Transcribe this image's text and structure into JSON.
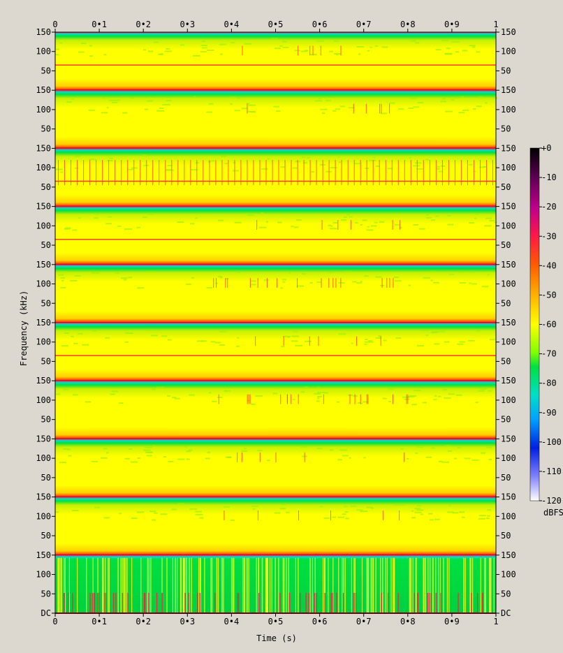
{
  "chart_data": {
    "type": "heatmap",
    "xlabel": "Time (s)",
    "ylabel": "Frequency (kHz)",
    "xlim": [
      0,
      1
    ],
    "x_ticks": [
      "0",
      "0•1",
      "0•2",
      "0•3",
      "0•4",
      "0•5",
      "0•6",
      "0•7",
      "0•8",
      "0•9",
      "1"
    ],
    "y_ticks_per_channel": [
      "150",
      "100",
      "50"
    ],
    "bottom_y_label": "DC",
    "channels": 10,
    "ylim_per_channel_khz": [
      0,
      150
    ],
    "grid": false,
    "colorbar": {
      "label": "dBFS",
      "range": [
        -120,
        0
      ],
      "ticks": [
        "+0",
        "-10",
        "-20",
        "-30",
        "-40",
        "-50",
        "-60",
        "-70",
        "-80",
        "-90",
        "-100",
        "-110",
        "-120"
      ],
      "colors": [
        "#000000",
        "#5a0050",
        "#c0008c",
        "#ff1848",
        "#ff5a00",
        "#ffb400",
        "#ffff00",
        "#80ff00",
        "#00e040",
        "#00e0c8",
        "#00a0ff",
        "#0020e0",
        "#8080ff",
        "#ffffff"
      ]
    }
  }
}
